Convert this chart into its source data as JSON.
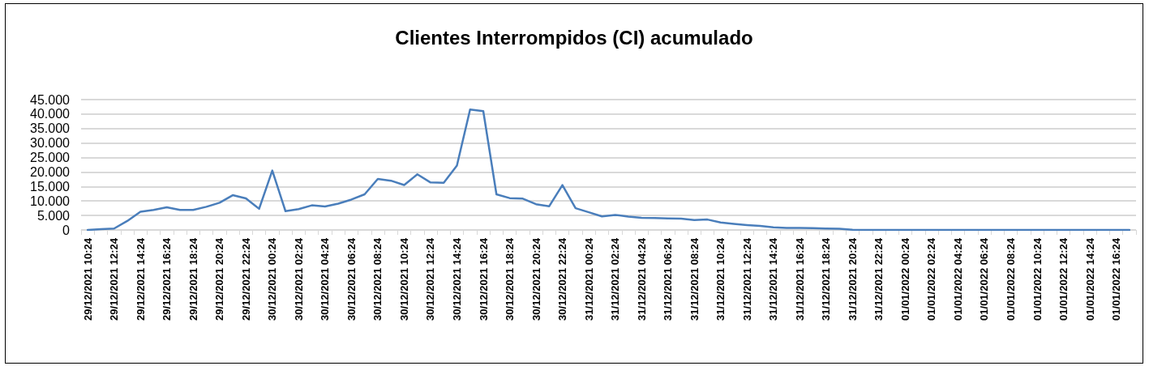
{
  "chart_data": {
    "type": "line",
    "title": "Clientes Interrompidos (CI) acumulado",
    "categories": [
      "29/12/2021 10:24",
      null,
      "29/12/2021 12:24",
      null,
      "29/12/2021 14:24",
      null,
      "29/12/2021 16:24",
      null,
      "29/12/2021 18:24",
      null,
      "29/12/2021 20:24",
      null,
      "29/12/2021 22:24",
      null,
      "30/12/2021 00:24",
      null,
      "30/12/2021 02:24",
      null,
      "30/12/2021 04:24",
      null,
      "30/12/2021 06:24",
      null,
      "30/12/2021 08:24",
      null,
      "30/12/2021 10:24",
      null,
      "30/12/2021 12:24",
      null,
      "30/12/2021 14:24",
      null,
      "30/12/2021 16:24",
      null,
      "30/12/2021 18:24",
      null,
      "30/12/2021 20:24",
      null,
      "30/12/2021 22:24",
      null,
      "31/12/2021 00:24",
      null,
      "31/12/2021 02:24",
      null,
      "31/12/2021 04:24",
      null,
      "31/12/2021 06:24",
      null,
      "31/12/2021 08:24",
      null,
      "31/12/2021 10:24",
      null,
      "31/12/2021 12:24",
      null,
      "31/12/2021 14:24",
      null,
      "31/12/2021 16:24",
      null,
      "31/12/2021 18:24",
      null,
      "31/12/2021 20:24",
      null,
      "31/12/2021 22:24",
      null,
      "01/01/2022 00:24",
      null,
      "01/01/2022 02:24",
      null,
      "01/01/2022 04:24",
      null,
      "01/01/2022 06:24",
      null,
      "01/01/2022 08:24",
      null,
      "01/01/2022 10:24",
      null,
      "01/01/2022 12:24",
      null,
      "01/01/2022 14:24",
      null,
      "01/01/2022 16:24",
      null
    ],
    "series": [
      {
        "color": "#4a7ebb",
        "values": [
          0,
          300,
          500,
          3100,
          6300,
          6900,
          7800,
          6900,
          6900,
          8000,
          9400,
          12000,
          10900,
          7300,
          20500,
          6500,
          7200,
          8500,
          8100,
          9100,
          10500,
          12300,
          17600,
          17000,
          15500,
          19200,
          16400,
          16300,
          22200,
          41600,
          41000,
          12300,
          11000,
          10800,
          8900,
          8200,
          15500,
          7500,
          6100,
          4700,
          5200,
          4600,
          4200,
          4100,
          4000,
          3900,
          3400,
          3600,
          2600,
          2100,
          1700,
          1400,
          900,
          700,
          700,
          600,
          500,
          400,
          100,
          0,
          0,
          0,
          0,
          0,
          0,
          0,
          0,
          0,
          0,
          0,
          0,
          0,
          0,
          0,
          0,
          0,
          0,
          0,
          0,
          0
        ]
      }
    ],
    "ylim": [
      0,
      45000
    ],
    "yticks": [
      0,
      {
        "value": 5000,
        "label": "5.000"
      },
      {
        "value": 10000,
        "label": "10.000"
      },
      {
        "value": 15000,
        "label": "15.000"
      },
      {
        "value": 20000,
        "label": "20.000"
      },
      {
        "value": 25000,
        "label": "25.000"
      },
      {
        "value": 30000,
        "label": "30.000"
      },
      {
        "value": 35000,
        "label": "35.000"
      },
      {
        "value": 40000,
        "label": "40.000"
      },
      {
        "value": 45000,
        "label": "45.000"
      }
    ],
    "grid": "y",
    "marker": "none",
    "line_style": "solid"
  }
}
